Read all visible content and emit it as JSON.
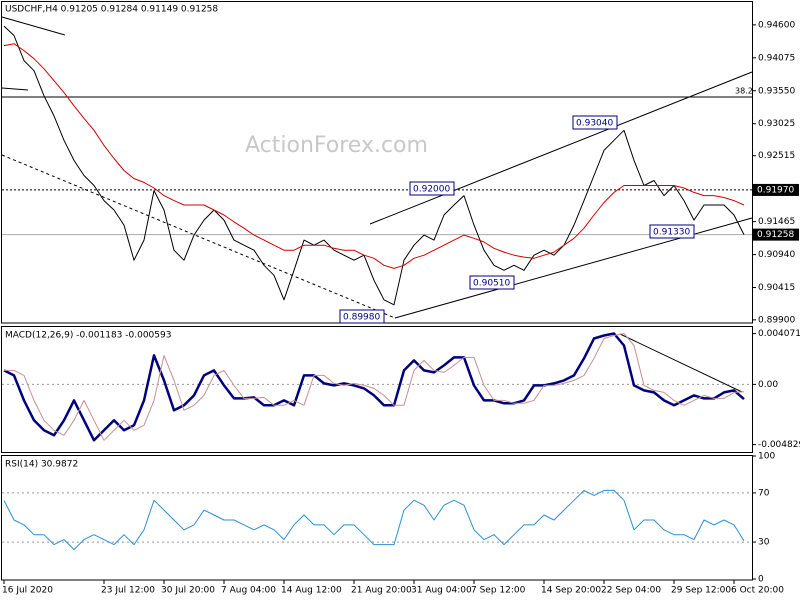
{
  "chart_data": [
    {
      "type": "line",
      "title": "USDCHF,H4 0.91205 0.91284 0.91149 0.91258",
      "watermark": "ActionForex.com",
      "ylim": [
        0.8985,
        0.9498
      ],
      "yticks": [
        {
          "value": 0.946,
          "label": "0.94600"
        },
        {
          "value": 0.94075,
          "label": "0.94075"
        },
        {
          "value": 0.9355,
          "label": "0.93550"
        },
        {
          "value": 0.93025,
          "label": "0.93025"
        },
        {
          "value": 0.92515,
          "label": "0.92515"
        },
        {
          "value": 0.91465,
          "label": "0.91465"
        },
        {
          "value": 0.9094,
          "label": "0.90940"
        },
        {
          "value": 0.90415,
          "label": "0.90415"
        },
        {
          "value": 0.899,
          "label": "0.89900"
        }
      ],
      "price_lines": [
        {
          "value": 0.9197,
          "label": "0.91970"
        },
        {
          "value": 0.91258,
          "label": "0.91258"
        }
      ],
      "annotations": [
        "0.93040",
        "0.92000",
        "0.91330",
        "0.90510",
        "0.89980",
        "38.2"
      ],
      "series": [
        {
          "name": "USDCHF",
          "color": "#000000",
          "values": [
            0.9458,
            0.9443,
            0.9403,
            0.9387,
            0.9347,
            0.9315,
            0.9276,
            0.9244,
            0.922,
            0.9204,
            0.918,
            0.9165,
            0.9141,
            0.9085,
            0.9117,
            0.9196,
            0.9165,
            0.9101,
            0.9085,
            0.9125,
            0.9149,
            0.9165,
            0.9149,
            0.9117,
            0.9109,
            0.9101,
            0.9077,
            0.9061,
            0.9022,
            0.9069,
            0.9117,
            0.9109,
            0.9117,
            0.9101,
            0.9093,
            0.9085,
            0.9093,
            0.9053,
            0.9022,
            0.9014,
            0.9085,
            0.9109,
            0.9125,
            0.9117,
            0.9157,
            0.9173,
            0.9188,
            0.9141,
            0.9101,
            0.9077,
            0.9069,
            0.9077,
            0.9069,
            0.9093,
            0.9101,
            0.9093,
            0.9109,
            0.9141,
            0.918,
            0.922,
            0.926,
            0.9276,
            0.9292,
            0.9244,
            0.9204,
            0.9212,
            0.9188,
            0.9204,
            0.918,
            0.9149,
            0.9173,
            0.9173,
            0.9173,
            0.9157,
            0.91258
          ]
        },
        {
          "name": "MA",
          "color": "#d40000",
          "values": [
            0.9427,
            0.943,
            0.9419,
            0.9406,
            0.939,
            0.9371,
            0.9352,
            0.9331,
            0.9311,
            0.9292,
            0.9268,
            0.9247,
            0.9228,
            0.9215,
            0.9209,
            0.92,
            0.9188,
            0.918,
            0.9173,
            0.9173,
            0.9173,
            0.9165,
            0.9157,
            0.9146,
            0.9136,
            0.9125,
            0.9117,
            0.9109,
            0.9101,
            0.9101,
            0.9109,
            0.9109,
            0.9109,
            0.9104,
            0.9101,
            0.9101,
            0.9093,
            0.9088,
            0.9077,
            0.9072,
            0.9077,
            0.9088,
            0.9093,
            0.9101,
            0.9109,
            0.9117,
            0.9125,
            0.912,
            0.9114,
            0.9104,
            0.9098,
            0.9093,
            0.909,
            0.9088,
            0.9093,
            0.9098,
            0.9109,
            0.912,
            0.9136,
            0.9157,
            0.9177,
            0.9193,
            0.9204,
            0.9204,
            0.9204,
            0.9204,
            0.9204,
            0.9204,
            0.92,
            0.9193,
            0.9188,
            0.9188,
            0.9185,
            0.918,
            0.9173
          ]
        }
      ]
    },
    {
      "type": "line",
      "title": "MACD(12,26,9) -0.001183 -0.000593",
      "ylim": [
        -0.0055,
        0.0046
      ],
      "yticks": [
        0.004071,
        {
          "value": 0,
          "label": "0.00"
        },
        -0.004829
      ],
      "series": [
        {
          "name": "MACD",
          "color": "#00007f",
          "values": [
            0.00112,
            0.00072,
            -0.00128,
            -0.00288,
            -0.00368,
            -0.00408,
            -0.00288,
            -0.00128,
            -0.00288,
            -0.00448,
            -0.00368,
            -0.00288,
            -0.00368,
            -0.00328,
            -0.00128,
            0.00232,
            0.00032,
            -0.00208,
            -0.00168,
            -0.00088,
            0.00072,
            0.00112,
            -8e-05,
            -0.00112,
            -0.00112,
            -0.00104,
            -0.00168,
            -0.00168,
            -0.00128,
            -0.00168,
            0.00072,
            0.00072,
            8e-05,
            -8e-05,
            8e-05,
            -8e-05,
            -0.00032,
            -0.00088,
            -0.00168,
            -0.00168,
            0.00112,
            0.00192,
            0.00112,
            0.00096,
            0.00152,
            0.00216,
            0.00216,
            -8e-05,
            -0.00128,
            -0.00128,
            -0.00152,
            -0.00152,
            -0.00128,
            -8e-05,
            -8e-05,
            8e-05,
            0.00032,
            0.00072,
            0.00208,
            0.00368,
            0.00392,
            0.00408,
            0.00312,
            -8e-05,
            -0.00048,
            -0.00064,
            -0.00128,
            -0.00168,
            -0.00128,
            -0.00088,
            -0.00112,
            -0.00112,
            -0.00064,
            -0.00048,
            -0.001183
          ]
        },
        {
          "name": "Signal",
          "color": "#c89090",
          "values": [
            0.00112,
            0.00112,
            0.00072,
            -0.00128,
            -0.00288,
            -0.00368,
            -0.00408,
            -0.00288,
            -0.00128,
            -0.00288,
            -0.00448,
            -0.00368,
            -0.00288,
            -0.00368,
            -0.00328,
            -0.00128,
            0.00232,
            0.00032,
            -0.00208,
            -0.00168,
            -0.00088,
            0.00072,
            0.00112,
            -8e-05,
            -0.00112,
            -0.00112,
            -0.00104,
            -0.00168,
            -0.00168,
            -0.00128,
            -0.00168,
            0.00072,
            0.00072,
            8e-05,
            -8e-05,
            8e-05,
            -8e-05,
            -0.00032,
            -0.00088,
            -0.00168,
            -0.00168,
            0.00112,
            0.00192,
            0.00112,
            0.00096,
            0.00152,
            0.00216,
            0.00216,
            -8e-05,
            -0.00128,
            -0.00128,
            -0.00152,
            -0.00152,
            -0.00128,
            -8e-05,
            -8e-05,
            8e-05,
            0.00032,
            0.00072,
            0.00208,
            0.00368,
            0.00392,
            0.00408,
            0.00312,
            -8e-05,
            -0.00048,
            -0.00064,
            -0.00128,
            -0.00168,
            -0.00128,
            -0.00088,
            -0.00112,
            -0.00112,
            -0.00064,
            -0.000593
          ]
        }
      ]
    },
    {
      "type": "line",
      "title": "RSI(14) 30.9872",
      "ylim": [
        0,
        100
      ],
      "yticks": [
        100,
        70,
        30,
        0
      ],
      "levels": [
        70,
        30
      ],
      "categories": [
        "16 Jul 2020",
        null,
        null,
        null,
        null,
        null,
        null,
        null,
        null,
        null,
        "23 Jul 12:00",
        null,
        null,
        null,
        null,
        null,
        "30 Jul 20:00",
        null,
        null,
        null,
        null,
        null,
        "7 Aug 04:00",
        null,
        null,
        null,
        null,
        null,
        "14 Aug 12:00",
        null,
        null,
        null,
        null,
        null,
        null,
        "21 Aug 20:00",
        null,
        null,
        null,
        null,
        null,
        "31 Aug 04:00",
        null,
        null,
        null,
        null,
        null,
        "7 Sep 12:00",
        null,
        null,
        null,
        null,
        null,
        null,
        "14 Sep 20:00",
        null,
        null,
        null,
        null,
        null,
        "22 Sep 04:00",
        null,
        null,
        null,
        null,
        null,
        null,
        "29 Sep 12:00",
        null,
        null,
        null,
        null,
        null,
        "6 Oct 20:00",
        null
      ],
      "series": [
        {
          "name": "RSI",
          "color": "#2b8fd8",
          "values": [
            64,
            48,
            44,
            36,
            36,
            28,
            32,
            24,
            32,
            36,
            32,
            28,
            36,
            28,
            40,
            64,
            56,
            48,
            40,
            44,
            56,
            52,
            48,
            48,
            44,
            40,
            44,
            40,
            32,
            44,
            52,
            44,
            44,
            36,
            44,
            44,
            36,
            28,
            28,
            28,
            56,
            64,
            60,
            48,
            60,
            64,
            60,
            40,
            32,
            36,
            28,
            36,
            44,
            44,
            52,
            48,
            56,
            64,
            72,
            68,
            72,
            72,
            64,
            40,
            48,
            48,
            40,
            36,
            36,
            32,
            48,
            44,
            48,
            44,
            30.9872
          ]
        }
      ]
    }
  ]
}
